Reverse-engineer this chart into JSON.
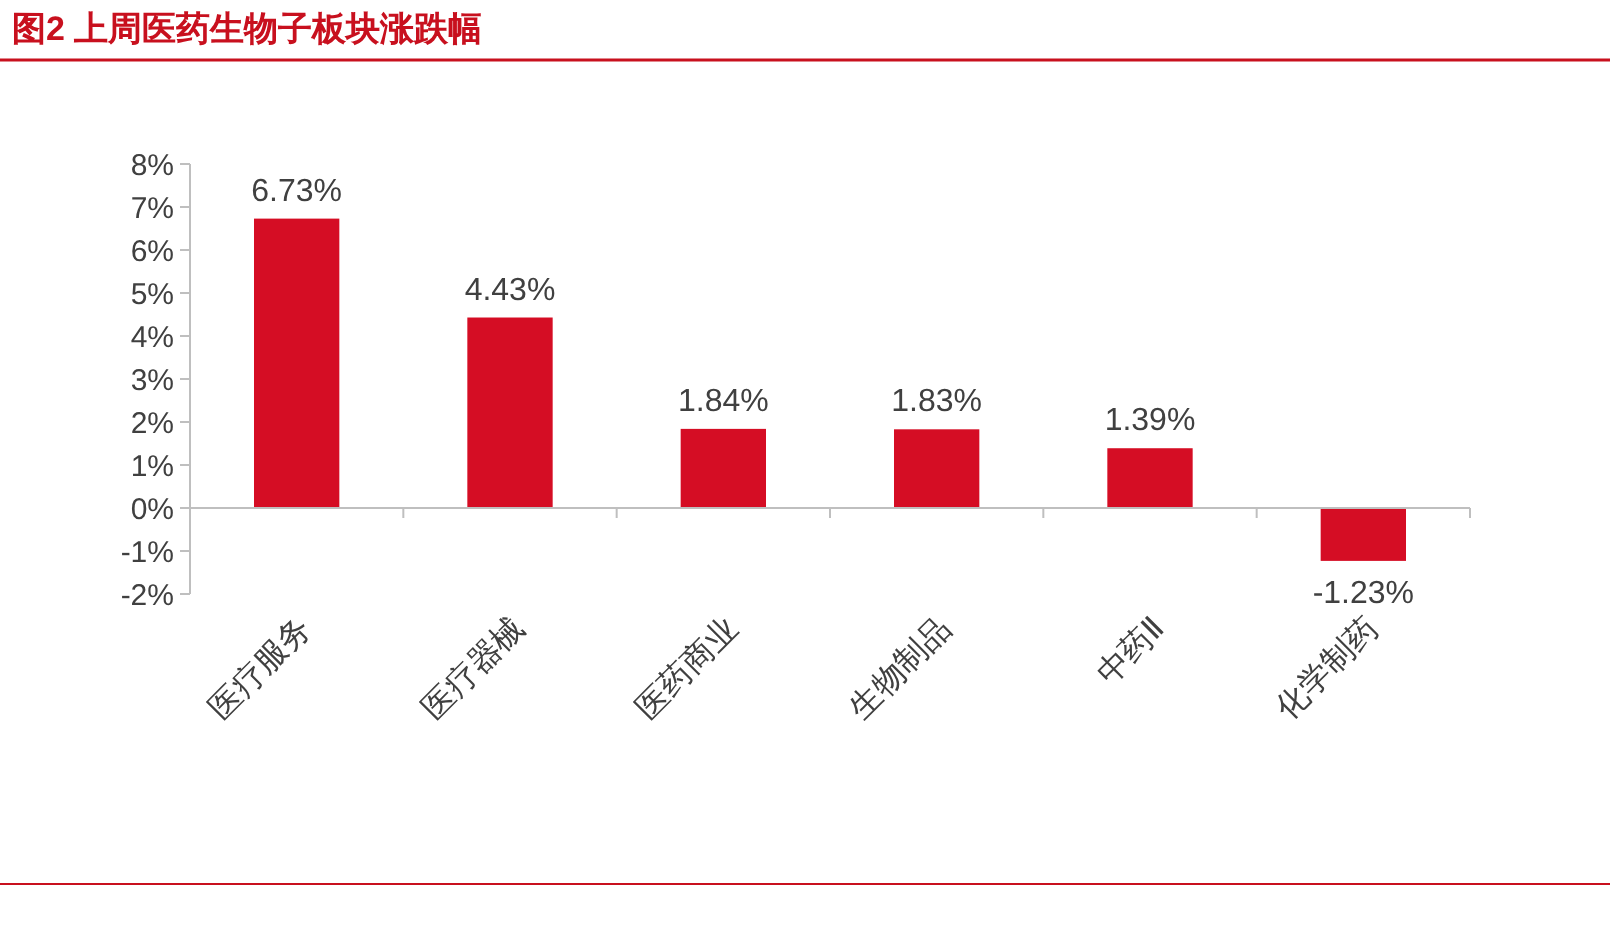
{
  "chart_data": {
    "type": "bar",
    "title": "图2  上周医药生物子板块涨跌幅",
    "categories": [
      "医疗服务",
      "医疗器械",
      "医药商业",
      "生物制品",
      "中药Ⅱ",
      "化学制药"
    ],
    "values": [
      6.73,
      4.43,
      1.84,
      1.83,
      1.39,
      -1.23
    ],
    "value_labels": [
      "6.73%",
      "4.43%",
      "1.84%",
      "1.83%",
      "1.39%",
      "-1.23%"
    ],
    "color": "#d50d24",
    "ylim": [
      -2,
      8
    ],
    "yticks": [
      {
        "value": -2,
        "label": "-2%"
      },
      {
        "value": -1,
        "label": "-1%"
      },
      {
        "value": 0,
        "label": "0%"
      },
      {
        "value": 1,
        "label": "1%"
      },
      {
        "value": 2,
        "label": "2%"
      },
      {
        "value": 3,
        "label": "3%"
      },
      {
        "value": 4,
        "label": "4%"
      },
      {
        "value": 5,
        "label": "5%"
      },
      {
        "value": 6,
        "label": "6%"
      },
      {
        "value": 7,
        "label": "7%"
      },
      {
        "value": 8,
        "label": "8%"
      }
    ],
    "data_labels": true
  }
}
